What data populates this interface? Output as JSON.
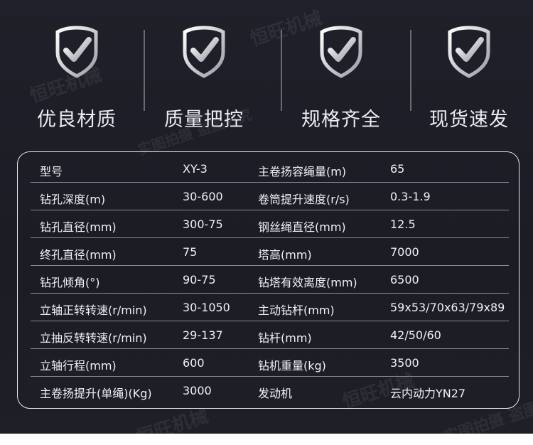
{
  "features": [
    {
      "label": "优良材质",
      "icon": "shield-check-icon"
    },
    {
      "label": "质量把控",
      "icon": "shield-check-icon"
    },
    {
      "label": "规格齐全",
      "icon": "shield-check-icon"
    },
    {
      "label": "现货速发",
      "icon": "shield-check-icon"
    }
  ],
  "specs": [
    [
      "型号",
      "XY-3",
      "主卷扬容绳量(m)",
      "65"
    ],
    [
      "钻孔深度(m)",
      "30-600",
      "卷筒提升速度(r/s)",
      "0.3-1.9"
    ],
    [
      "钻孔直径(mm)",
      "300-75",
      "钢丝绳直径(mm)",
      "12.5"
    ],
    [
      "终孔直径(mm)",
      "75",
      "塔高(mm)",
      "7000"
    ],
    [
      "钻孔倾角(°)",
      "90-75",
      "钻塔有效离度(mm)",
      "6500"
    ],
    [
      "立轴正转转速(r/min)",
      "30-1050",
      "主动钻杆(mm)",
      "59x53/70x63/79x89"
    ],
    [
      "立抽反转转速(r/min)",
      "29-137",
      "钻杆(mm)",
      "42/50/60"
    ],
    [
      "立轴行程(mm)",
      "600",
      "钻机重量(kg)",
      "3500"
    ],
    [
      "主卷扬提升(单绳)(Kg)",
      "3000",
      "发动机",
      "云内动力YN27"
    ]
  ],
  "watermarks": [
    "恒旺机械",
    "实图拍摄 盗图必究"
  ]
}
